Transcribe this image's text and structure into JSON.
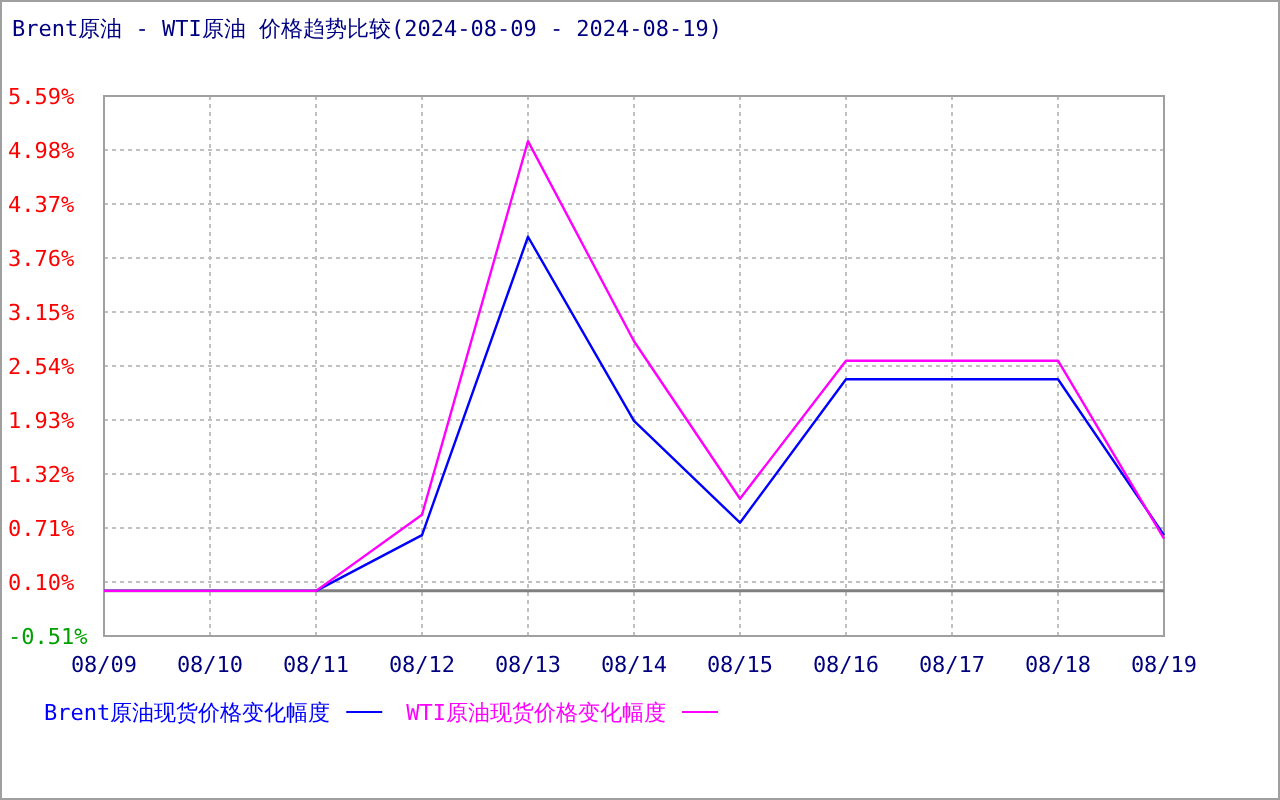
{
  "chart_data": {
    "type": "line",
    "title": "Brent原油 - WTI原油 价格趋势比较(2024-08-09 - 2024-08-19)",
    "categories": [
      "08/09",
      "08/10",
      "08/11",
      "08/12",
      "08/13",
      "08/14",
      "08/15",
      "08/16",
      "08/17",
      "08/18",
      "08/19"
    ],
    "series": [
      {
        "name": "Brent原油现货价格变化幅度",
        "color": "#0000ff",
        "values": [
          0,
          0,
          0,
          0.63,
          4.0,
          1.92,
          0.77,
          2.39,
          2.39,
          2.39,
          0.63
        ]
      },
      {
        "name": "WTI原油现货价格变化幅度",
        "color": "#ff00ff",
        "values": [
          0,
          0,
          0,
          0.86,
          5.08,
          2.82,
          1.04,
          2.6,
          2.6,
          2.6,
          0.59
        ]
      }
    ],
    "ylim": [
      -0.51,
      5.59
    ],
    "yticks": [
      {
        "value": -0.51,
        "label": "-0.51%"
      },
      {
        "value": 0.1,
        "label": "0.10%"
      },
      {
        "value": 0.71,
        "label": "0.71%"
      },
      {
        "value": 1.32,
        "label": "1.32%"
      },
      {
        "value": 1.93,
        "label": "1.93%"
      },
      {
        "value": 2.54,
        "label": "2.54%"
      },
      {
        "value": 3.15,
        "label": "3.15%"
      },
      {
        "value": 3.76,
        "label": "3.76%"
      },
      {
        "value": 4.37,
        "label": "4.37%"
      },
      {
        "value": 4.98,
        "label": "4.98%"
      },
      {
        "value": 5.59,
        "label": "5.59%"
      }
    ],
    "ref_lines": [
      {
        "axis": "y",
        "value": 0,
        "color": "#808080"
      }
    ],
    "grid": true,
    "legend": "bottom"
  }
}
